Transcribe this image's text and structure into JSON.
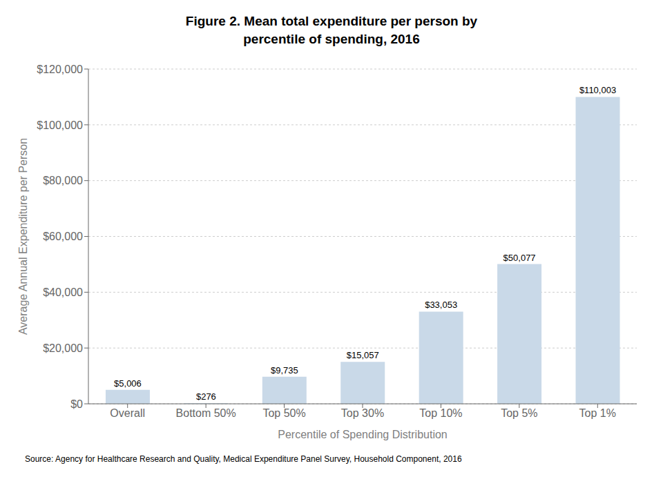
{
  "chart_data": {
    "type": "bar",
    "title": "Figure 2. Mean total expenditure per person by\npercentile of spending, 2016",
    "categories": [
      "Overall",
      "Bottom 50%",
      "Top 50%",
      "Top 30%",
      "Top 10%",
      "Top 5%",
      "Top 1%"
    ],
    "values": [
      5006,
      276,
      9735,
      15057,
      33053,
      50077,
      110003
    ],
    "value_labels": [
      "$5,006",
      "$276",
      "$9,735",
      "$15,057",
      "$33,053",
      "$50,077",
      "$110,003"
    ],
    "data_labels": true,
    "color": "#c9d9e8",
    "xlabel": "Percentile of Spending Distribution",
    "ylabel": "Average Annual Expenditure per Person",
    "ylim": [
      0,
      120000
    ],
    "yticks": [
      {
        "value": 0,
        "label": "$0"
      },
      {
        "value": 20000,
        "label": "$20,000"
      },
      {
        "value": 40000,
        "label": "$40,000"
      },
      {
        "value": 60000,
        "label": "$60,000"
      },
      {
        "value": 80000,
        "label": "$80,000"
      },
      {
        "value": 100000,
        "label": "$100,000"
      },
      {
        "value": 120000,
        "label": "$120,000"
      }
    ],
    "grid": true,
    "annotations": [
      "Source: Agency for Healthcare Research and Quality, Medical Expenditure Panel Survey, Household Component, 2016"
    ]
  }
}
